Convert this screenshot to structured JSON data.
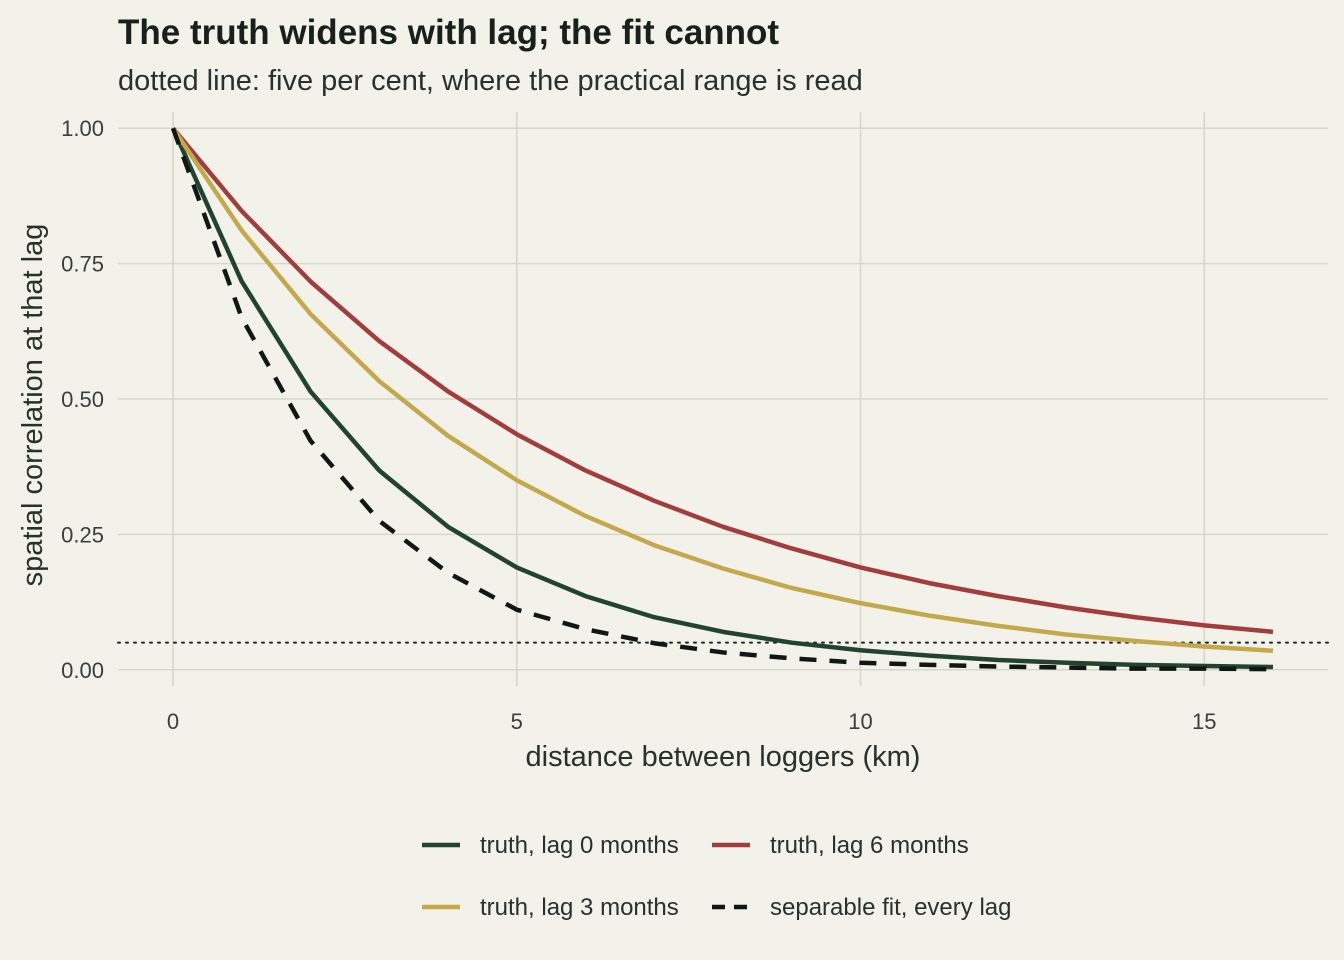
{
  "colors": {
    "background": "#f2f1ea",
    "grid": "#d8d7c8",
    "lag0": "#22432f",
    "lag3": "#c4a94c",
    "lag6": "#a33d3d",
    "fit": "#111814"
  },
  "chart_data": {
    "type": "line",
    "title": "The truth widens with lag; the fit cannot",
    "subtitle": "dotted line: five per cent, where the practical range is read",
    "xlabel": "distance between loggers (km)",
    "ylabel": "spatial correlation at that lag",
    "xlim": [
      -0.8,
      16.8
    ],
    "ylim": [
      -0.03,
      1.03
    ],
    "x_ticks": [
      0,
      5,
      10,
      15
    ],
    "x_tick_labels": [
      "0",
      "5",
      "10",
      "15"
    ],
    "y_ticks": [
      0,
      0.25,
      0.5,
      0.75,
      1.0
    ],
    "y_tick_labels": [
      "0.00",
      "0.25",
      "0.50",
      "0.75",
      "1.00"
    ],
    "grid": true,
    "legend_position": "bottom",
    "reference_line": {
      "y": 0.05,
      "style": "dotted"
    },
    "x": [
      0,
      1,
      2,
      3,
      4,
      5,
      6,
      7,
      8,
      9,
      10,
      11,
      12,
      13,
      14,
      15,
      16
    ],
    "series": [
      {
        "name": "truth, lag 0 months",
        "color": "#22432f",
        "dash": "solid",
        "values": [
          1.0,
          0.717,
          0.514,
          0.368,
          0.264,
          0.189,
          0.136,
          0.097,
          0.07,
          0.05,
          0.036,
          0.026,
          0.018,
          0.013,
          0.009,
          0.007,
          0.005
        ]
      },
      {
        "name": "truth, lag 3 months",
        "color": "#c4a94c",
        "dash": "solid",
        "values": [
          1.0,
          0.811,
          0.657,
          0.533,
          0.432,
          0.35,
          0.284,
          0.23,
          0.187,
          0.151,
          0.123,
          0.1,
          0.081,
          0.065,
          0.053,
          0.043,
          0.035
        ]
      },
      {
        "name": "truth, lag 6 months",
        "color": "#a33d3d",
        "dash": "solid",
        "values": [
          1.0,
          0.847,
          0.717,
          0.607,
          0.514,
          0.435,
          0.368,
          0.312,
          0.264,
          0.224,
          0.189,
          0.16,
          0.136,
          0.115,
          0.097,
          0.082,
          0.07
        ]
      },
      {
        "name": "separable fit, every lag",
        "color": "#111814",
        "dash": "dashed",
        "values": [
          1.0,
          0.65,
          0.423,
          0.275,
          0.179,
          0.111,
          0.075,
          0.049,
          0.032,
          0.021,
          0.013,
          0.009,
          0.006,
          0.004,
          0.002,
          0.002,
          0.001
        ]
      }
    ]
  }
}
